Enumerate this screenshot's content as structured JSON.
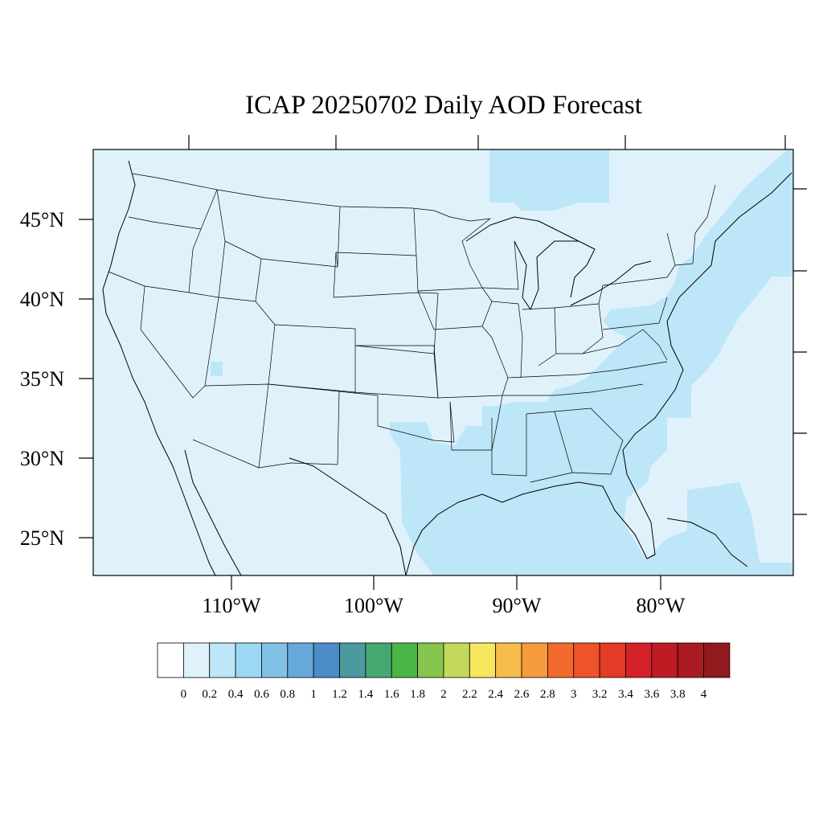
{
  "title": "ICAP 20250702 Daily AOD Forecast",
  "map": {
    "lat_labels": [
      "45°N",
      "40°N",
      "35°N",
      "30°N",
      "25°N"
    ],
    "lon_labels": [
      "110°W",
      "100°W",
      "90°W",
      "80°W"
    ],
    "background_level": "0-0.2",
    "highlight_level": "0.2-0.4"
  },
  "colorbar": {
    "levels": [
      "0",
      "0.2",
      "0.4",
      "0.6",
      "0.8",
      "1",
      "1.2",
      "1.4",
      "1.6",
      "1.8",
      "2",
      "2.2",
      "2.4",
      "2.6",
      "2.8",
      "3",
      "3.2",
      "3.4",
      "3.6",
      "3.8",
      "4"
    ],
    "colors": [
      "#ffffff",
      "#dff2fb",
      "#bde6f8",
      "#9cd8f3",
      "#82c1e6",
      "#66a8da",
      "#4b8cc9",
      "#4a9a9e",
      "#46a771",
      "#4bb548",
      "#86c54e",
      "#c3d95b",
      "#f8e65e",
      "#f7bd4a",
      "#f69a3e",
      "#f26a2d",
      "#ee5329",
      "#e23b26",
      "#d42129",
      "#bd1c25",
      "#a91b21",
      "#911a1e"
    ]
  }
}
